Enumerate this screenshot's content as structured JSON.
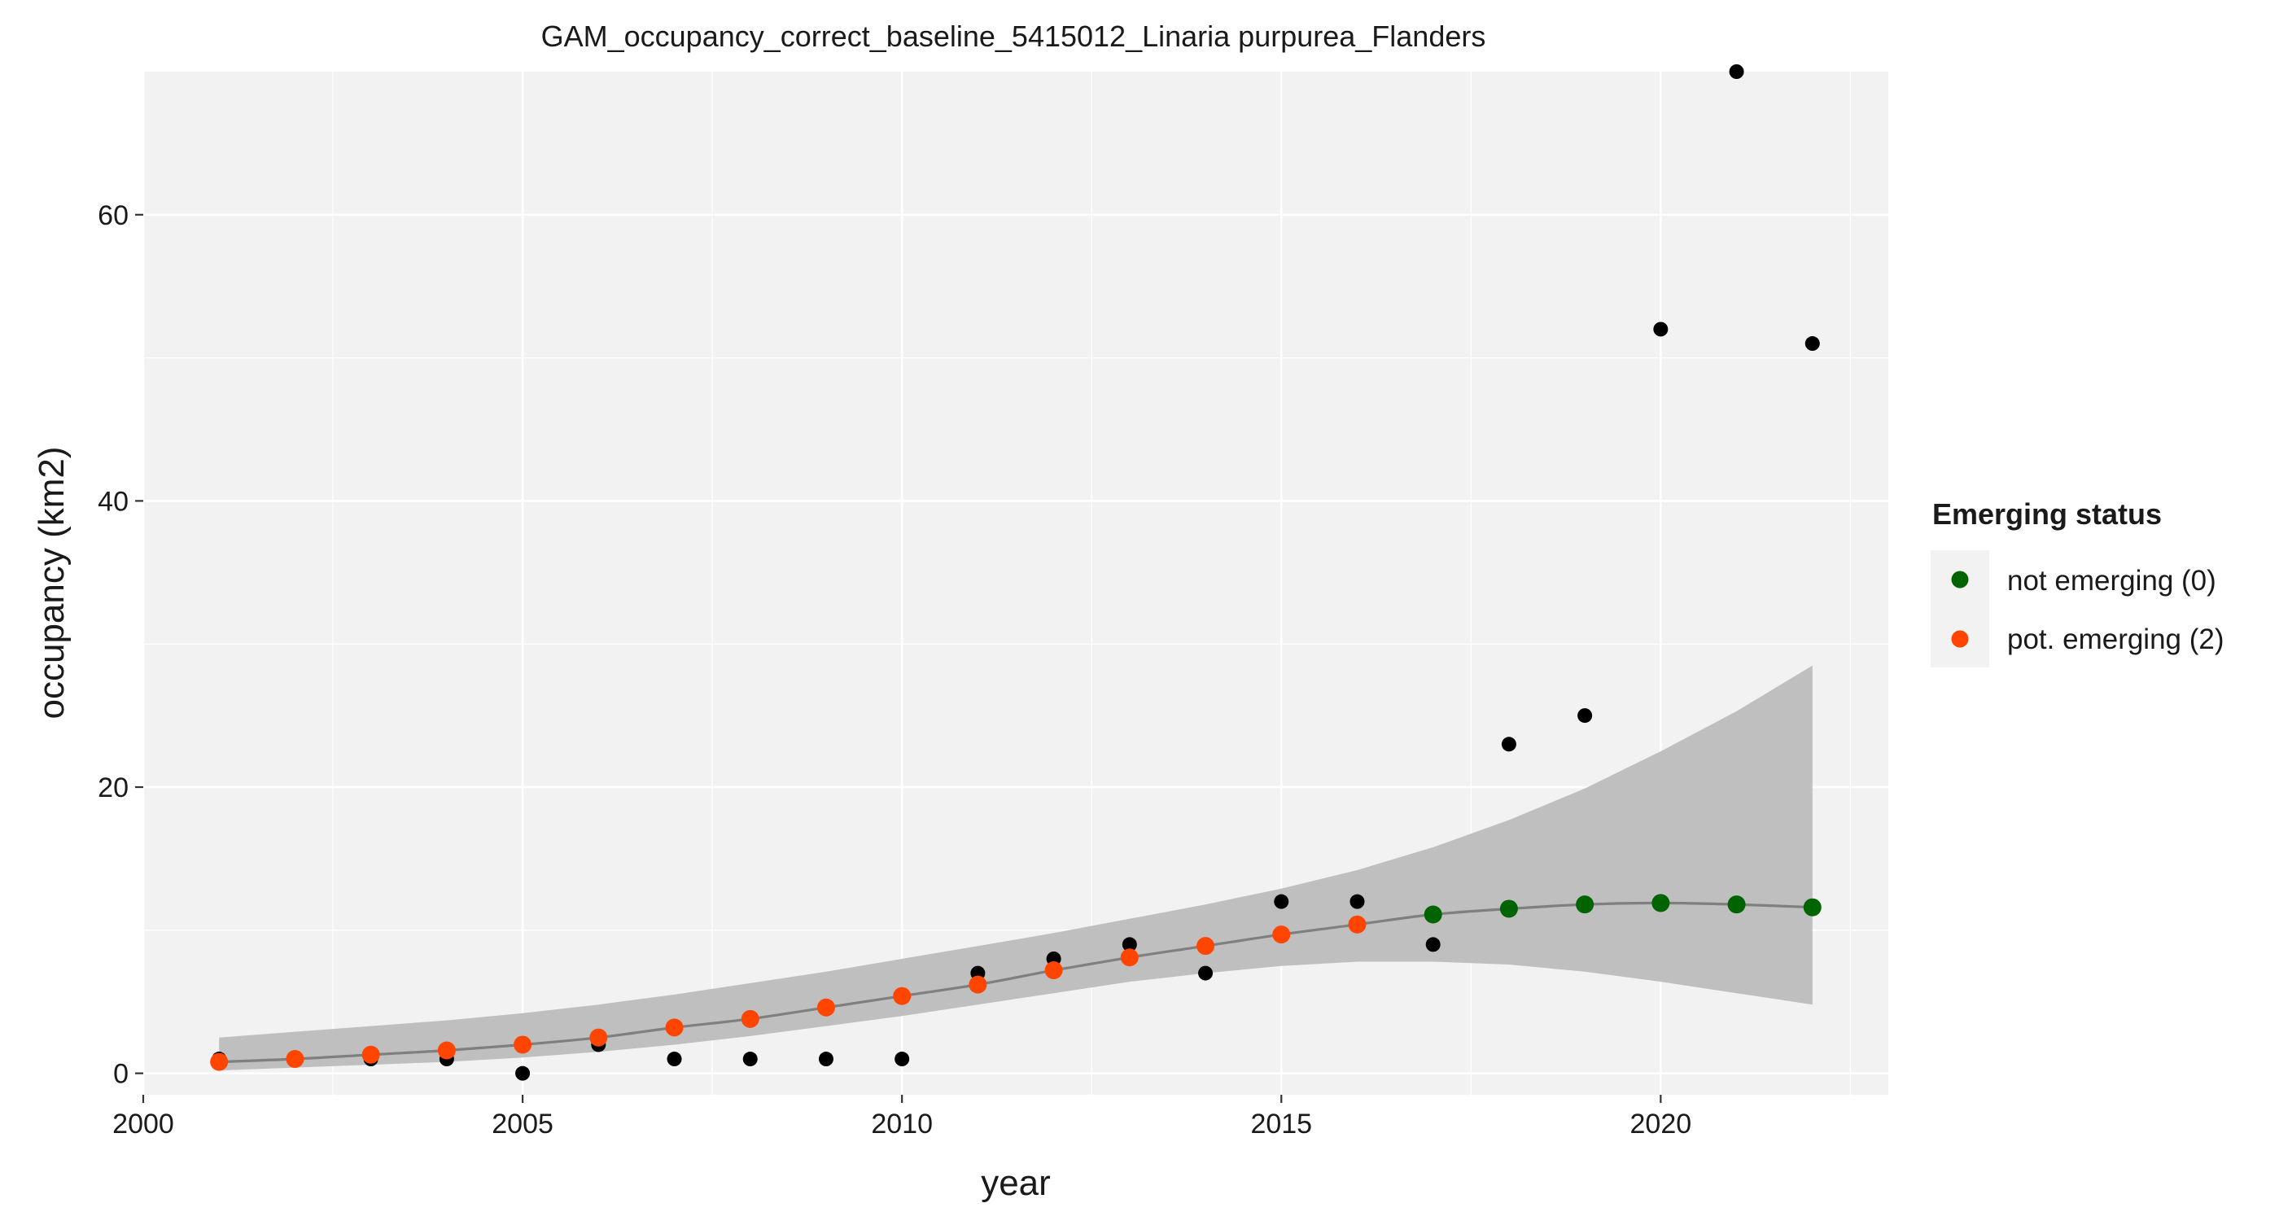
{
  "chart_data": {
    "type": "scatter",
    "title": "GAM_occupancy_correct_baseline_5415012_Linaria purpurea_Flanders",
    "xlabel": "year",
    "ylabel": "occupancy (km2)",
    "xlim": [
      2000,
      2023
    ],
    "ylim": [
      -1.5,
      70
    ],
    "x_ticks": [
      2000,
      2005,
      2010,
      2015,
      2020
    ],
    "y_ticks": [
      0,
      20,
      40,
      60
    ],
    "grid": true,
    "legend": {
      "title": "Emerging status",
      "position": "right",
      "entries": [
        {
          "label": "not emerging (0)",
          "color": "#006400"
        },
        {
          "label": "pot. emerging (2)",
          "color": "#FF4500"
        }
      ]
    },
    "observed": {
      "color": "#000000",
      "x": [
        2001,
        2002,
        2003,
        2004,
        2005,
        2006,
        2007,
        2008,
        2009,
        2010,
        2011,
        2012,
        2013,
        2014,
        2015,
        2016,
        2017,
        2018,
        2019,
        2020,
        2021,
        2022
      ],
      "y": [
        1,
        1,
        1,
        1,
        0,
        2,
        1,
        1,
        1,
        1,
        7,
        8,
        9,
        7,
        12,
        12,
        9,
        23,
        25,
        52,
        70,
        51
      ]
    },
    "fitted": {
      "line_color": "#7f7f7f",
      "x": [
        2001,
        2002,
        2003,
        2004,
        2005,
        2006,
        2007,
        2008,
        2009,
        2010,
        2011,
        2012,
        2013,
        2014,
        2015,
        2016,
        2017,
        2018,
        2019,
        2020,
        2021,
        2022
      ],
      "y": [
        0.8,
        1.0,
        1.3,
        1.6,
        2.0,
        2.5,
        3.2,
        3.8,
        4.6,
        5.4,
        6.2,
        7.2,
        8.1,
        8.9,
        9.7,
        10.4,
        11.1,
        11.5,
        11.8,
        11.9,
        11.8,
        11.6
      ],
      "status": [
        "pot. emerging (2)",
        "pot. emerging (2)",
        "pot. emerging (2)",
        "pot. emerging (2)",
        "pot. emerging (2)",
        "pot. emerging (2)",
        "pot. emerging (2)",
        "pot. emerging (2)",
        "pot. emerging (2)",
        "pot. emerging (2)",
        "pot. emerging (2)",
        "pot. emerging (2)",
        "pot. emerging (2)",
        "pot. emerging (2)",
        "pot. emerging (2)",
        "pot. emerging (2)",
        "not emerging (0)",
        "not emerging (0)",
        "not emerging (0)",
        "not emerging (0)",
        "not emerging (0)",
        "not emerging (0)"
      ]
    },
    "confidence_band": {
      "color": "#bfbfbf",
      "x": [
        2001,
        2002,
        2003,
        2004,
        2005,
        2006,
        2007,
        2008,
        2009,
        2010,
        2011,
        2012,
        2013,
        2014,
        2015,
        2016,
        2017,
        2018,
        2019,
        2020,
        2021,
        2022
      ],
      "lower": [
        0.2,
        0.4,
        0.6,
        0.8,
        1.1,
        1.5,
        2.0,
        2.6,
        3.3,
        4.0,
        4.8,
        5.6,
        6.4,
        7.0,
        7.5,
        7.8,
        7.8,
        7.6,
        7.1,
        6.4,
        5.6,
        4.8
      ],
      "upper": [
        2.5,
        2.9,
        3.3,
        3.7,
        4.2,
        4.8,
        5.5,
        6.3,
        7.1,
        8.0,
        8.9,
        9.8,
        10.8,
        11.8,
        12.9,
        14.2,
        15.8,
        17.7,
        19.9,
        22.5,
        25.3,
        28.5
      ]
    }
  }
}
